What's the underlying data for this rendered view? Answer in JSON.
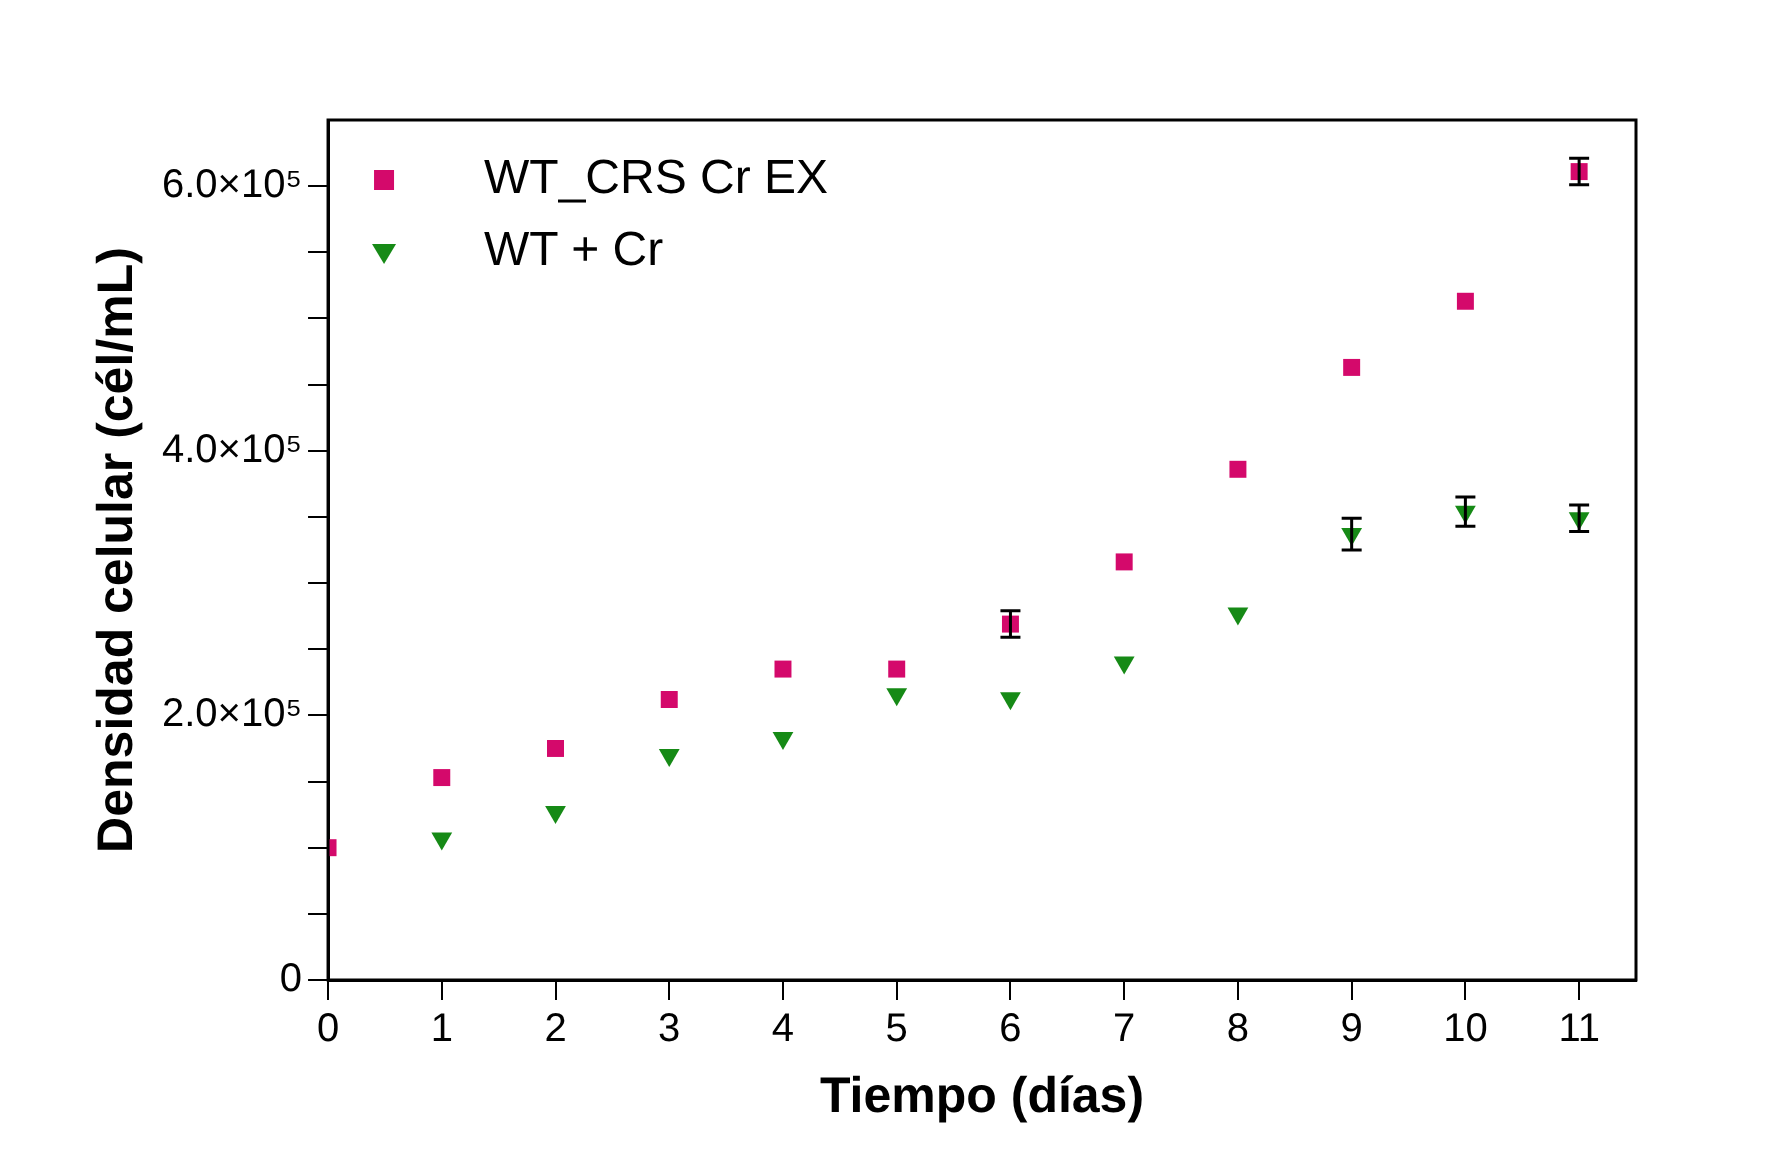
{
  "chart_data": {
    "type": "scatter",
    "xlabel": "Tiempo (días)",
    "ylabel": "Densidad celular (cél/mL)",
    "x": [
      0,
      1,
      2,
      3,
      4,
      5,
      6,
      7,
      8,
      9,
      10,
      11
    ],
    "series": [
      {
        "name": "WT_CRS Cr EX",
        "color": "#d4096b",
        "marker": "square",
        "values": [
          100000,
          153000,
          175000,
          212000,
          235000,
          235000,
          269000,
          316000,
          386000,
          463000,
          513000,
          611000
        ],
        "errors": [
          null,
          null,
          null,
          null,
          null,
          null,
          10000,
          null,
          null,
          null,
          null,
          10000
        ]
      },
      {
        "name": "WT + Cr",
        "color": "#168a16",
        "marker": "triangle",
        "values": [
          null,
          107000,
          127000,
          170000,
          183000,
          216000,
          213000,
          240000,
          277000,
          337000,
          354000,
          349000
        ],
        "errors": [
          null,
          null,
          null,
          null,
          null,
          null,
          null,
          null,
          null,
          12000,
          11000,
          10000
        ]
      }
    ],
    "xlim": [
      0,
      11.5
    ],
    "xticks": [
      0,
      1,
      2,
      3,
      4,
      5,
      6,
      7,
      8,
      9,
      10,
      11
    ],
    "ylim": [
      0,
      650000
    ],
    "yticks": [
      0,
      {
        "value": 50000,
        "label": null
      },
      {
        "value": 100000,
        "label": null
      },
      {
        "value": 150000,
        "label": null
      },
      {
        "value": 200000,
        "label": "2.0×10⁵"
      },
      {
        "value": 250000,
        "label": null
      },
      {
        "value": 300000,
        "label": null
      },
      {
        "value": 350000,
        "label": null
      },
      {
        "value": 400000,
        "label": "4.0×10⁵"
      },
      {
        "value": 450000,
        "label": null
      },
      {
        "value": 500000,
        "label": null
      },
      {
        "value": 550000,
        "label": null
      },
      {
        "value": 600000,
        "label": "6.0×10⁵"
      }
    ],
    "legend": "top left",
    "grid": false
  }
}
